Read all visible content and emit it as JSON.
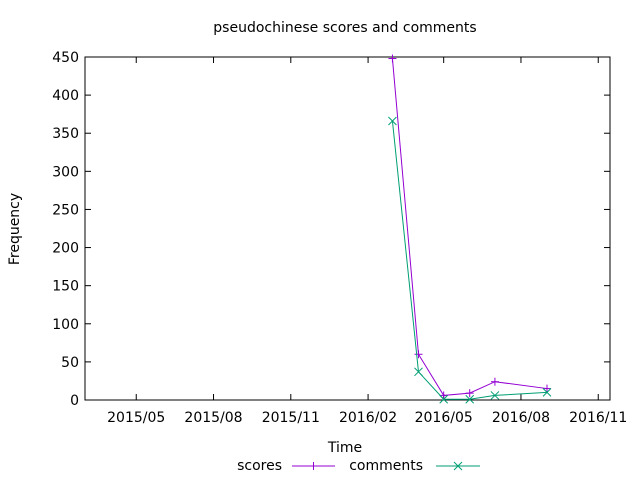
{
  "chart_data": {
    "type": "line",
    "title": "pseudochinese scores and comments",
    "xlabel": "Time",
    "ylabel": "Frequency",
    "x_axis": {
      "kind": "date",
      "range": [
        "2015-03-01",
        "2016-11-15"
      ],
      "ticks": [
        {
          "date": "2015-05-01",
          "label": "2015/05"
        },
        {
          "date": "2015-08-01",
          "label": "2015/08"
        },
        {
          "date": "2015-11-01",
          "label": "2015/11"
        },
        {
          "date": "2016-02-01",
          "label": "2016/02"
        },
        {
          "date": "2016-05-01",
          "label": "2016/05"
        },
        {
          "date": "2016-08-01",
          "label": "2016/08"
        },
        {
          "date": "2016-11-01",
          "label": "2016/11"
        }
      ]
    },
    "ylim": [
      0,
      450
    ],
    "y_ticks": [
      0,
      50,
      100,
      150,
      200,
      250,
      300,
      350,
      400,
      450
    ],
    "grid": false,
    "legend_position": "bottom-center",
    "series": [
      {
        "name": "scores",
        "color": "#9400d3",
        "marker": "plus",
        "points": [
          {
            "x": "2016-03-01",
            "y": 448
          },
          {
            "x": "2016-04-01",
            "y": 60
          },
          {
            "x": "2016-05-01",
            "y": 6
          },
          {
            "x": "2016-06-01",
            "y": 9
          },
          {
            "x": "2016-07-01",
            "y": 24
          },
          {
            "x": "2016-09-01",
            "y": 15
          }
        ]
      },
      {
        "name": "comments",
        "color": "#009e73",
        "marker": "cross",
        "points": [
          {
            "x": "2016-03-01",
            "y": 366
          },
          {
            "x": "2016-04-01",
            "y": 37
          },
          {
            "x": "2016-05-01",
            "y": 1
          },
          {
            "x": "2016-06-01",
            "y": 1
          },
          {
            "x": "2016-07-01",
            "y": 6
          },
          {
            "x": "2016-09-01",
            "y": 10
          }
        ]
      }
    ]
  }
}
